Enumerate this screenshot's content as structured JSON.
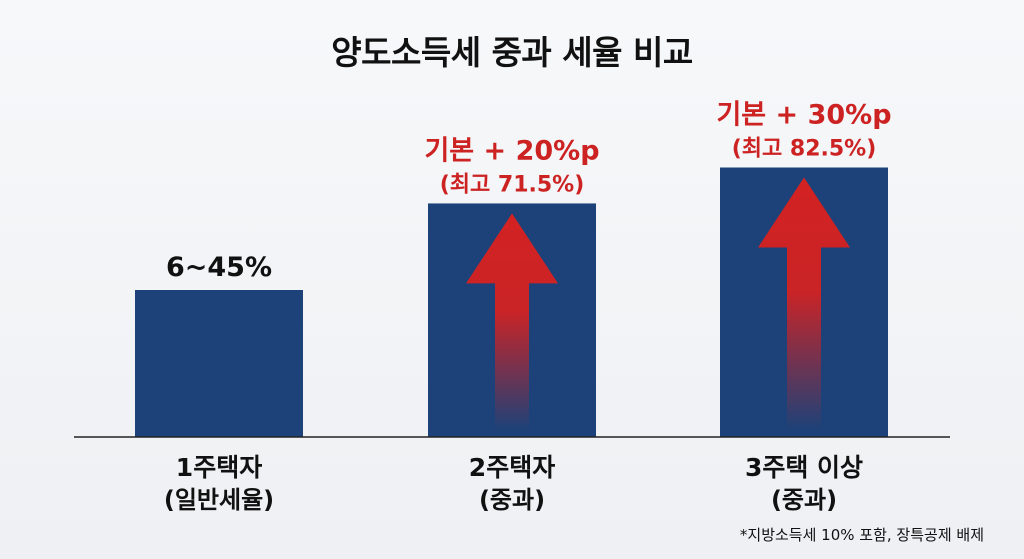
{
  "chart_data": {
    "type": "bar",
    "title": "양도소득세 중과 세율 비교",
    "categories": [
      {
        "line1": "1주택자",
        "line2": "(일반세율)"
      },
      {
        "line1": "2주택자",
        "line2": "(중과)"
      },
      {
        "line1": "3주택 이상",
        "line2": "(중과)"
      }
    ],
    "values": [
      45,
      71.5,
      82.5
    ],
    "labels": [
      {
        "main": "6~45%",
        "sub": ""
      },
      {
        "main": "기본 + 20%p",
        "sub": "(최고 71.5%)"
      },
      {
        "main": "기본 + 30%p",
        "sub": "(최고 82.5%)"
      }
    ],
    "arrows": [
      false,
      true,
      true
    ],
    "colors": {
      "bar": "#1c4279",
      "arrow": "#d32222",
      "label_plain": "#111111",
      "label_accent": "#cc2222"
    },
    "footnote": "*지방소득세 10% 포함, 장특공제 배제"
  }
}
